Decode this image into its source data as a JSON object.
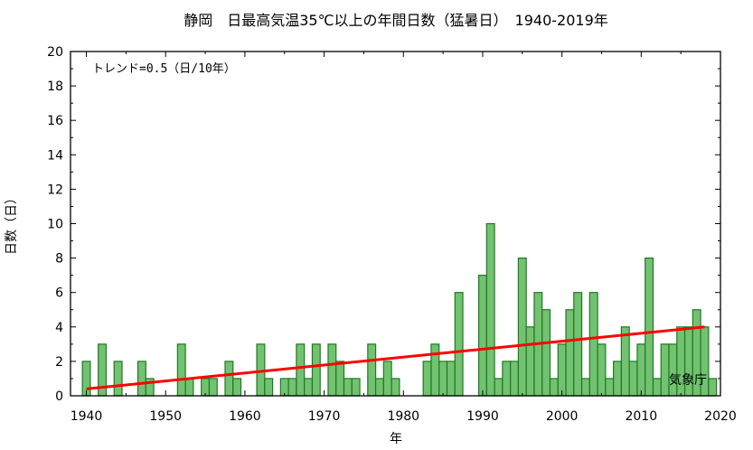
{
  "chart_data": {
    "type": "bar",
    "title": "静岡　日最高気温35℃以上の年間日数（猛暑日）　1940-2019年",
    "xlabel": "年",
    "ylabel": "日数（日）",
    "xlim": [
      1938,
      2020
    ],
    "ylim": [
      0,
      20
    ],
    "x_ticks": [
      1940,
      1950,
      1960,
      1970,
      1980,
      1990,
      2000,
      2010,
      2020
    ],
    "y_ticks": [
      0,
      2,
      4,
      6,
      8,
      10,
      12,
      14,
      16,
      18,
      20
    ],
    "grid": false,
    "annotation": "トレンド=0.5（日/10年）",
    "credit": "気象庁",
    "colors": {
      "bar_fill": "#72c272",
      "bar_stroke": "#1f7a1f",
      "trend": "#ff0000"
    },
    "years": [
      1940,
      1941,
      1942,
      1943,
      1944,
      1945,
      1946,
      1947,
      1948,
      1949,
      1950,
      1951,
      1952,
      1953,
      1954,
      1955,
      1956,
      1957,
      1958,
      1959,
      1960,
      1961,
      1962,
      1963,
      1964,
      1965,
      1966,
      1967,
      1968,
      1969,
      1970,
      1971,
      1972,
      1973,
      1974,
      1975,
      1976,
      1977,
      1978,
      1979,
      1980,
      1981,
      1982,
      1983,
      1984,
      1985,
      1986,
      1987,
      1988,
      1989,
      1990,
      1991,
      1992,
      1993,
      1994,
      1995,
      1996,
      1997,
      1998,
      1999,
      2000,
      2001,
      2002,
      2003,
      2004,
      2005,
      2006,
      2007,
      2008,
      2009,
      2010,
      2011,
      2012,
      2013,
      2014,
      2015,
      2016,
      2017,
      2018,
      2019
    ],
    "values": [
      2,
      0,
      3,
      0,
      2,
      0,
      0,
      2,
      1,
      0,
      0,
      0,
      3,
      1,
      0,
      1,
      1,
      0,
      2,
      1,
      0,
      0,
      3,
      1,
      0,
      1,
      1,
      3,
      1,
      3,
      0,
      3,
      2,
      1,
      1,
      0,
      3,
      1,
      2,
      1,
      0,
      0,
      0,
      2,
      3,
      2,
      2,
      6,
      0,
      0,
      7,
      10,
      1,
      2,
      2,
      8,
      4,
      6,
      5,
      1,
      3,
      5,
      6,
      1,
      6,
      3,
      1,
      2,
      4,
      2,
      3,
      8,
      1,
      3,
      3,
      4,
      4,
      5,
      4,
      1
    ],
    "trend": {
      "x": [
        1940,
        2018
      ],
      "y": [
        0.4,
        4.0
      ]
    }
  }
}
